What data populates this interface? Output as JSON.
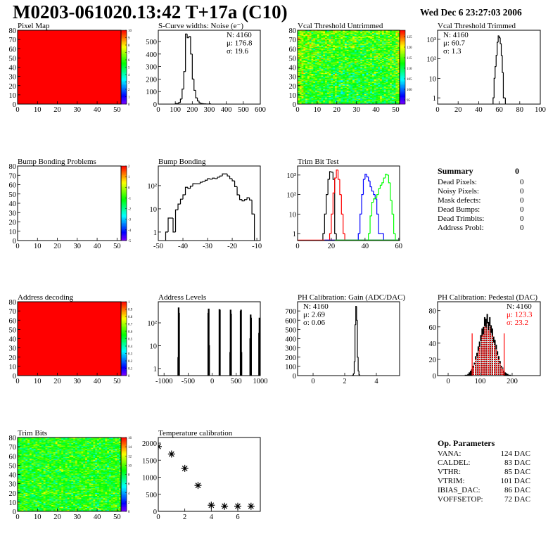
{
  "header": {
    "title": "M0203-061020.13:42 T+17a (C10)",
    "date": "Wed Dec  6 23:27:03 2006"
  },
  "summary": {
    "title": "Summary",
    "total": "0",
    "items": [
      {
        "label": "Dead Pixels:",
        "value": "0"
      },
      {
        "label": "Noisy Pixels:",
        "value": "0"
      },
      {
        "label": "Mask defects:",
        "value": "0"
      },
      {
        "label": "Dead Bumps:",
        "value": "0"
      },
      {
        "label": "Dead Trimbits:",
        "value": "0"
      },
      {
        "label": "Address Probl:",
        "value": "0"
      }
    ]
  },
  "op_parameters": {
    "title": "Op. Parameters",
    "items": [
      {
        "label": "VANA:",
        "value": "124 DAC"
      },
      {
        "label": "CALDEL:",
        "value": "83 DAC"
      },
      {
        "label": "VTHR:",
        "value": "85 DAC"
      },
      {
        "label": "VTRIM:",
        "value": "101 DAC"
      },
      {
        "label": "IBIAS_DAC:",
        "value": "86 DAC"
      },
      {
        "label": "VOFFSETOP:",
        "value": "72 DAC"
      }
    ]
  },
  "chart_data": [
    {
      "type": "heatmap",
      "title": "Pixel Map",
      "xlim": [
        0,
        52
      ],
      "ylim": [
        0,
        80
      ],
      "zlim": [
        0,
        10
      ],
      "fill": "uniform",
      "value": 10,
      "xticks": [
        0,
        10,
        20,
        30,
        40,
        50
      ],
      "yticks": [
        0,
        10,
        20,
        30,
        40,
        50,
        60,
        70,
        80
      ],
      "cb_ticks": [
        0,
        1,
        2,
        3,
        4,
        5,
        6,
        7,
        8,
        9,
        10
      ]
    },
    {
      "type": "bar",
      "title": "S-Curve widths: Noise (e⁻)",
      "xlim": [
        0,
        600
      ],
      "ylim": [
        0,
        590
      ],
      "ylog": false,
      "xticks": [
        0,
        100,
        200,
        300,
        400,
        500,
        600
      ],
      "yticks": [
        0,
        100,
        200,
        300,
        400,
        500
      ],
      "stats_pos": "top-right",
      "stats": [
        {
          "text": "N: 4160",
          "color": "#000000"
        },
        {
          "text": "μ: 176.8",
          "color": "#000000"
        },
        {
          "text": "σ: 19.6",
          "color": "#000000"
        }
      ],
      "series": [
        {
          "color": "#000000",
          "start": 100,
          "width": 10,
          "counts": [
            5,
            5,
            12,
            40,
            120,
            260,
            560,
            530,
            540,
            400,
            200,
            110,
            50,
            25,
            10,
            5,
            3,
            2,
            1,
            0,
            2
          ]
        }
      ]
    },
    {
      "type": "heatmap",
      "title": "Vcal Threshold Untrimmed",
      "xlim": [
        0,
        52
      ],
      "ylim": [
        0,
        80
      ],
      "zlim": [
        93,
        128
      ],
      "fill": "noise",
      "mean": 111,
      "sigma": 3.5,
      "xticks": [
        0,
        10,
        20,
        30,
        40,
        50
      ],
      "yticks": [
        0,
        10,
        20,
        30,
        40,
        50,
        60,
        70,
        80
      ],
      "cb_ticks": [
        95,
        100,
        105,
        110,
        115,
        120,
        125
      ]
    },
    {
      "type": "bar",
      "title": "Vcal Threshold Trimmed",
      "xlim": [
        0,
        100
      ],
      "ylim": [
        0.48,
        2900
      ],
      "ylog": true,
      "xticks": [
        0,
        20,
        40,
        60,
        80,
        100
      ],
      "yticks": [
        1,
        10,
        100,
        1000
      ],
      "ytick_labels": [
        "1",
        "10",
        "10²",
        "10³"
      ],
      "stats_pos": "top-left",
      "stats": [
        {
          "text": "N: 4160",
          "color": "#000000"
        },
        {
          "text": "μ: 60.7",
          "color": "#000000"
        },
        {
          "text": "σ:  1.3",
          "color": "#000000"
        }
      ],
      "series": [
        {
          "color": "#000000",
          "start": 54,
          "width": 1,
          "counts": [
            1,
            10,
            40,
            150,
            700,
            1500,
            1200,
            600,
            150,
            20,
            1,
            1
          ]
        }
      ]
    },
    {
      "type": "heatmap",
      "title": "Bump Bonding Problems",
      "xlim": [
        0,
        52
      ],
      "ylim": [
        0,
        80
      ],
      "zlim": [
        -5,
        2
      ],
      "fill": "empty",
      "xticks": [
        0,
        10,
        20,
        30,
        40,
        50
      ],
      "yticks": [
        0,
        10,
        20,
        30,
        40,
        50,
        60,
        70,
        80
      ],
      "cb_ticks": [
        -5,
        -4,
        -3,
        -2,
        -1,
        0,
        1,
        2
      ]
    },
    {
      "type": "bar",
      "title": "Bump Bonding",
      "xlim": [
        -50,
        -8.6
      ],
      "ylim": [
        0.43,
        700
      ],
      "ylog": true,
      "xticks": [
        -50,
        -40,
        -30,
        -20,
        -10
      ],
      "yticks": [
        1,
        10,
        100
      ],
      "ytick_labels": [
        "1",
        "10",
        "10²"
      ],
      "series": [
        {
          "color": "#000000",
          "start": -47,
          "width": 1,
          "counts": [
            1,
            4,
            4,
            1,
            9,
            16,
            26,
            40,
            85,
            75,
            95,
            120,
            120,
            120,
            140,
            150,
            170,
            200,
            190,
            210,
            200,
            230,
            260,
            320,
            320,
            260,
            200,
            160,
            90,
            40,
            25,
            22,
            25,
            30,
            24,
            6
          ]
        }
      ]
    },
    {
      "type": "bar",
      "title": "Trim Bit Test",
      "xlim": [
        0,
        60.5
      ],
      "ylim": [
        0.44,
        2900
      ],
      "ylog": true,
      "xticks": [
        0,
        20,
        40,
        60
      ],
      "yticks": [
        1,
        10,
        100,
        1000
      ],
      "ytick_labels": [
        "1",
        "10",
        "10²",
        "10³"
      ],
      "series": [
        {
          "color": "#000000",
          "start": 15,
          "width": 1,
          "counts": [
            1,
            10,
            100,
            600,
            1500,
            1400,
            600,
            1
          ]
        },
        {
          "color": "#ff0000",
          "start": 19,
          "width": 1,
          "counts": [
            1,
            10,
            120,
            700,
            1800,
            600,
            100,
            10,
            1
          ]
        },
        {
          "color": "#0000ff",
          "start": 36,
          "width": 1,
          "counts": [
            1,
            10,
            100,
            600,
            1100,
            800,
            500,
            250,
            150,
            100,
            60,
            10,
            1,
            1,
            1
          ]
        },
        {
          "color": "#00ff00",
          "start": 42,
          "width": 1,
          "counts": [
            1,
            8,
            40,
            60,
            70,
            100,
            200,
            300,
            400,
            700,
            1100,
            1000,
            400,
            50,
            10,
            1
          ]
        }
      ]
    },
    {
      "type": "heatmap",
      "title": "Address decoding",
      "xlim": [
        0,
        52
      ],
      "ylim": [
        0,
        80
      ],
      "zlim": [
        0,
        1
      ],
      "fill": "uniform",
      "value": 1,
      "xticks": [
        0,
        10,
        20,
        30,
        40,
        50
      ],
      "yticks": [
        0,
        10,
        20,
        30,
        40,
        50,
        60,
        70,
        80
      ],
      "cb_ticks": [
        0,
        0.1,
        0.2,
        0.3,
        0.4,
        0.5,
        0.6,
        0.7,
        0.8,
        0.9,
        1
      ]
    },
    {
      "type": "bar",
      "title": "Address Levels",
      "xlim": [
        -1120,
        1000
      ],
      "ylim": [
        0.49,
        840
      ],
      "ylog": true,
      "xticks": [
        -1000,
        -500,
        0,
        500,
        1000
      ],
      "yticks": [
        1,
        10,
        100
      ],
      "ytick_labels": [
        "1",
        "10",
        "10²"
      ],
      "bin_width": 8,
      "bins": [
        [
          -712,
          3
        ],
        [
          -704,
          450
        ],
        [
          -696,
          260
        ],
        [
          -88,
          260
        ],
        [
          -80,
          400
        ],
        [
          -72,
          10
        ],
        [
          144,
          380
        ],
        [
          152,
          360
        ],
        [
          368,
          5
        ],
        [
          376,
          360
        ],
        [
          384,
          240
        ],
        [
          584,
          320
        ],
        [
          592,
          360
        ],
        [
          600,
          5
        ],
        [
          784,
          20
        ],
        [
          792,
          220
        ],
        [
          800,
          160
        ],
        [
          968,
          35
        ],
        [
          976,
          160
        ]
      ]
    },
    {
      "type": "bar",
      "title": "PH Calibration: Gain (ADC/DAC)",
      "xlim": [
        -0.98,
        5.47
      ],
      "ylim": [
        0,
        800
      ],
      "ylog": false,
      "xticks": [
        0,
        2,
        4
      ],
      "yticks": [
        0,
        100,
        200,
        300,
        400,
        500,
        600,
        700
      ],
      "stats_pos": "top-left",
      "stats": [
        {
          "text": "N: 4160",
          "color": "#000000"
        },
        {
          "text": "μ: 2.69",
          "color": "#000000"
        },
        {
          "text": "σ: 0.06",
          "color": "#000000"
        }
      ],
      "series": [
        {
          "color": "#000000",
          "start": 2.5,
          "width": 0.05,
          "counts": [
            5,
            20,
            150,
            550,
            750,
            600,
            200,
            50,
            10
          ]
        }
      ]
    },
    {
      "type": "bar",
      "title": "PH Calibration: Pedestal (DAC)",
      "xlim": [
        -33,
        288
      ],
      "ylim": [
        0,
        91
      ],
      "ylog": false,
      "xticks": [
        0,
        100,
        200
      ],
      "yticks": [
        0,
        20,
        40,
        60,
        80
      ],
      "stats_pos": "top-right",
      "stats": [
        {
          "text": "N: 4160",
          "color": "#000000"
        },
        {
          "text": "μ: 123.3",
          "color": "#ff0000"
        },
        {
          "text": "σ: 23.2",
          "color": "#ff0000"
        }
      ],
      "fit_range": [
        75,
        175
      ],
      "fit_color": "#ff0000",
      "series": [
        {
          "color": "#000000",
          "start": 52,
          "width": 4,
          "filled": true,
          "counts": [
            1,
            1,
            2,
            4,
            6,
            8,
            12,
            16,
            24,
            28,
            36,
            42,
            50,
            58,
            60,
            72,
            70,
            76,
            66,
            72,
            62,
            58,
            48,
            44,
            38,
            30,
            24,
            18,
            12,
            10,
            6,
            4,
            3,
            2,
            1,
            1,
            0
          ]
        }
      ]
    },
    {
      "type": "heatmap",
      "title": "Trim Bits",
      "xlim": [
        0,
        52
      ],
      "ylim": [
        0,
        80
      ],
      "zlim": [
        0,
        16
      ],
      "fill": "noise",
      "mean": 9,
      "sigma": 1.4,
      "xticks": [
        0,
        10,
        20,
        30,
        40,
        50
      ],
      "yticks": [
        0,
        10,
        20,
        30,
        40,
        50,
        60,
        70,
        80
      ],
      "cb_ticks": [
        0,
        2,
        4,
        6,
        8,
        10,
        12,
        14,
        16
      ]
    },
    {
      "type": "scatter",
      "title": "Temperature calibration",
      "xlim": [
        0,
        7.7
      ],
      "ylim": [
        0,
        2165
      ],
      "xticks": [
        0,
        2,
        4,
        6
      ],
      "yticks": [
        0,
        500,
        1000,
        1500,
        2000
      ],
      "x": [
        0,
        1,
        2,
        3,
        4,
        5,
        6,
        7
      ],
      "y": [
        1900,
        1680,
        1260,
        760,
        180,
        150,
        150,
        150
      ],
      "marker": "asterisk"
    }
  ]
}
